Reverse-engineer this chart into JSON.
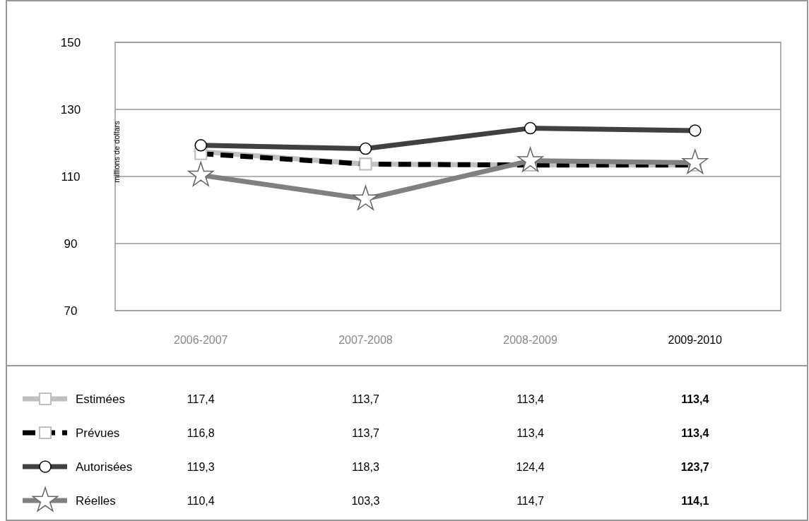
{
  "chart_data": {
    "type": "line",
    "ylabel": "millions de dollars",
    "categories": [
      "2006-2007",
      "2007-2008",
      "2008-2009",
      "2009-2010"
    ],
    "ylim": [
      70,
      150
    ],
    "yticks": [
      70,
      90,
      110,
      130,
      150
    ],
    "grid": "y",
    "legend": "bottom",
    "series": [
      {
        "name": "Estimées",
        "color": "#c0c0c0",
        "marker": "square",
        "line_style": "solid",
        "values": [
          117.4,
          113.7,
          113.4,
          113.4
        ],
        "value_labels": [
          "117,4",
          "113,7",
          "113,4",
          "113,4"
        ]
      },
      {
        "name": "Prévues",
        "color": "#000000",
        "marker": "square",
        "line_style": "dashed",
        "values": [
          116.8,
          113.7,
          113.4,
          113.4
        ],
        "value_labels": [
          "116,8",
          "113,7",
          "113,4",
          "113,4"
        ]
      },
      {
        "name": "Autorisées",
        "color": "#404040",
        "marker": "circle",
        "line_style": "solid",
        "values": [
          119.3,
          118.3,
          124.4,
          123.7
        ],
        "value_labels": [
          "119,3",
          "118,3",
          "124,4",
          "123,7"
        ]
      },
      {
        "name": "Réelles",
        "color": "#808080",
        "marker": "star",
        "line_style": "solid",
        "values": [
          110.4,
          103.3,
          114.7,
          114.1
        ],
        "value_labels": [
          "110,4",
          "103,3",
          "114,7",
          "114,1"
        ]
      }
    ]
  }
}
